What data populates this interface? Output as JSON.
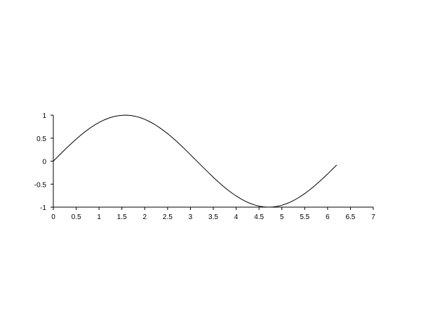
{
  "chart_data": {
    "type": "line",
    "title": "",
    "xlabel": "",
    "ylabel": "",
    "xlim": [
      0,
      7
    ],
    "ylim": [
      -1,
      1
    ],
    "grid": false,
    "line_color": "#000000",
    "x_ticks": [
      0,
      0.5,
      1,
      1.5,
      2,
      2.5,
      3,
      3.5,
      4,
      4.5,
      5,
      5.5,
      6,
      6.5,
      7
    ],
    "y_ticks": [
      1,
      0.5,
      0,
      -0.5,
      -1
    ],
    "series": [
      {
        "x": [
          0,
          0.1,
          0.2,
          0.3,
          0.4,
          0.5,
          0.6,
          0.7,
          0.8,
          0.9,
          1.0,
          1.1,
          1.2,
          1.3,
          1.4,
          1.5,
          1.6,
          1.7,
          1.8,
          1.9,
          2.0,
          2.1,
          2.2,
          2.3,
          2.4,
          2.5,
          2.6,
          2.7,
          2.8,
          2.9,
          3.0,
          3.1,
          3.2,
          3.3,
          3.4,
          3.5,
          3.6,
          3.7,
          3.8,
          3.9,
          4.0,
          4.1,
          4.2,
          4.3,
          4.4,
          4.5,
          4.6,
          4.7,
          4.8,
          4.9,
          5.0,
          5.1,
          5.2,
          5.3,
          5.4,
          5.5,
          5.6,
          5.7,
          5.8,
          5.9,
          6.0,
          6.1,
          6.2
        ],
        "y": [
          0,
          0.0998,
          0.1987,
          0.2955,
          0.3894,
          0.4794,
          0.5646,
          0.6442,
          0.7174,
          0.7833,
          0.8415,
          0.8912,
          0.932,
          0.9636,
          0.9854,
          0.9975,
          0.9996,
          0.9917,
          0.9738,
          0.9463,
          0.9093,
          0.8632,
          0.8085,
          0.7457,
          0.6755,
          0.5985,
          0.5155,
          0.4274,
          0.335,
          0.2392,
          0.1411,
          0.0416,
          -0.0584,
          -0.1577,
          -0.2555,
          -0.3508,
          -0.4425,
          -0.5298,
          -0.6119,
          -0.6878,
          -0.7568,
          -0.8183,
          -0.8716,
          -0.9162,
          -0.9516,
          -0.9775,
          -0.9937,
          -0.9999,
          -0.9962,
          -0.9825,
          -0.9589,
          -0.9258,
          -0.8835,
          -0.8323,
          -0.7728,
          -0.7055,
          -0.6313,
          -0.5507,
          -0.4646,
          -0.3739,
          -0.2794,
          -0.1822,
          -0.0831
        ]
      }
    ]
  }
}
